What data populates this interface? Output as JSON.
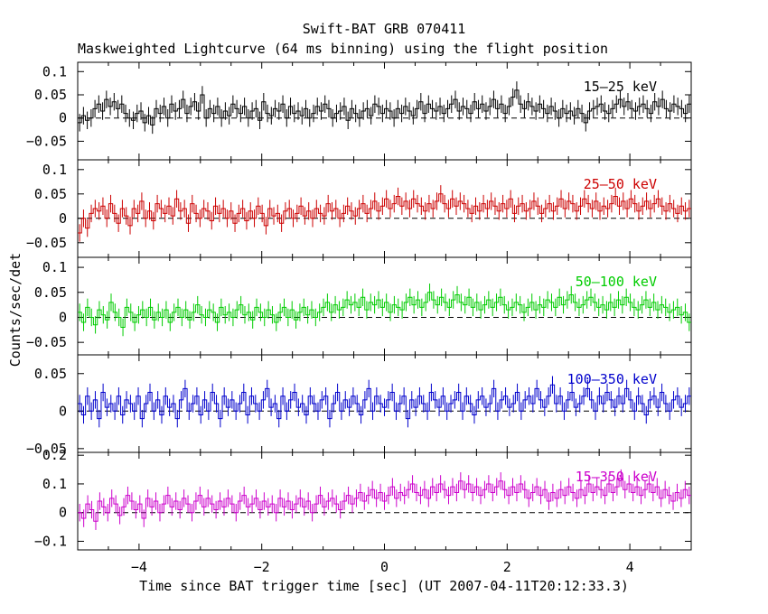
{
  "chart_data": {
    "type": "line",
    "title": "Swift-BAT GRB 070411",
    "subtitle": "Maskweighted Lightcurve (64 ms binning) using the flight position",
    "xlabel": "Time since BAT trigger time [sec] (UT 2007-04-11T20:12:33.3)",
    "ylabel": "Counts/sec/det",
    "xlim": [
      -5,
      5
    ],
    "x_ticks": [
      -4,
      -2,
      0,
      2,
      4
    ],
    "x_tick_labels": [
      "−4",
      "−2",
      "0",
      "2",
      "4"
    ],
    "bin_width": 0.064,
    "grid": false,
    "zero_line": "dashed",
    "panels": [
      {
        "band": "15–25 keV",
        "color": "#000000",
        "ylim": [
          -0.09,
          0.12
        ],
        "yticks": [
          -0.05,
          0,
          0.05,
          0.1
        ],
        "ytick_labels": [
          "−0.05",
          "0",
          "0.05",
          "0.1"
        ],
        "values": [
          -0.01,
          0.005,
          -0.005,
          0.0,
          0.02,
          0.03,
          0.015,
          0.04,
          0.025,
          0.035,
          0.02,
          0.03,
          0.01,
          0.0,
          -0.005,
          0.01,
          0.015,
          -0.01,
          0.005,
          -0.015,
          0.02,
          0.01,
          0.025,
          0.0,
          0.03,
          0.015,
          0.02,
          0.04,
          0.01,
          0.025,
          0.035,
          0.015,
          0.05,
          0.0,
          0.02,
          0.01,
          0.025,
          0.0,
          0.015,
          0.005,
          0.03,
          0.02,
          0.01,
          0.025,
          0.0,
          0.015,
          0.02,
          -0.005,
          0.035,
          0.01,
          0.005,
          0.02,
          0.015,
          0.03,
          0.0,
          0.025,
          0.01,
          0.015,
          0.005,
          0.02,
          0.0,
          0.01,
          0.025,
          0.015,
          0.03,
          0.02,
          0.0,
          0.01,
          0.015,
          0.025,
          -0.005,
          0.02,
          0.01,
          0.0,
          0.015,
          0.02,
          0.005,
          0.03,
          0.025,
          0.01,
          0.02,
          0.015,
          0.0,
          0.02,
          0.01,
          0.025,
          0.015,
          0.005,
          0.02,
          0.035,
          0.01,
          0.03,
          0.02,
          0.015,
          0.025,
          0.01,
          0.02,
          0.03,
          0.04,
          0.015,
          0.025,
          0.02,
          0.01,
          0.035,
          0.02,
          0.03,
          0.015,
          0.025,
          0.04,
          0.02,
          0.03,
          0.01,
          0.025,
          0.045,
          0.06,
          0.03,
          0.02,
          0.035,
          0.025,
          0.015,
          0.03,
          0.02,
          0.01,
          0.025,
          0.015,
          0.0,
          0.02,
          0.01,
          0.015,
          0.005,
          0.02,
          0.01,
          -0.01,
          0.015,
          0.02,
          0.025,
          0.03,
          0.015,
          0.01,
          0.02,
          0.03,
          0.04,
          0.025,
          0.035,
          0.02,
          0.015,
          0.025,
          0.03,
          0.02,
          0.01,
          0.035,
          0.025,
          0.04,
          0.02,
          0.015,
          0.03,
          0.025,
          0.02,
          0.01,
          0.03
        ]
      },
      {
        "band": "25–50 keV",
        "color": "#cc0000",
        "ylim": [
          -0.08,
          0.12
        ],
        "yticks": [
          -0.05,
          0,
          0.05,
          0.1
        ],
        "ytick_labels": [
          "−0.05",
          "0",
          "0.05",
          "0.1"
        ],
        "values": [
          -0.03,
          0.0,
          -0.02,
          0.01,
          0.02,
          0.015,
          0.025,
          0.0,
          0.03,
          0.01,
          -0.01,
          0.02,
          0.005,
          -0.015,
          0.02,
          0.01,
          0.035,
          0.0,
          0.015,
          -0.005,
          0.03,
          0.02,
          0.01,
          0.025,
          0.005,
          0.04,
          0.015,
          0.02,
          -0.01,
          0.03,
          0.01,
          0.0,
          0.02,
          0.015,
          -0.005,
          0.025,
          0.01,
          0.02,
          0.0,
          0.015,
          -0.01,
          0.01,
          0.02,
          -0.005,
          0.015,
          0.0,
          0.025,
          0.01,
          -0.015,
          0.02,
          0.005,
          0.01,
          -0.01,
          0.015,
          0.02,
          0.0,
          0.01,
          0.025,
          0.005,
          0.015,
          0.0,
          0.02,
          0.01,
          0.005,
          0.03,
          0.015,
          0.02,
          0.0,
          0.01,
          0.025,
          0.015,
          0.005,
          0.02,
          0.03,
          0.01,
          0.02,
          0.035,
          0.015,
          0.025,
          0.04,
          0.02,
          0.03,
          0.045,
          0.025,
          0.035,
          0.02,
          0.04,
          0.03,
          0.025,
          0.015,
          0.03,
          0.02,
          0.035,
          0.05,
          0.03,
          0.02,
          0.04,
          0.025,
          0.035,
          0.03,
          0.02,
          0.01,
          0.025,
          0.015,
          0.03,
          0.02,
          0.035,
          0.025,
          0.015,
          0.03,
          0.02,
          0.04,
          0.01,
          0.025,
          0.03,
          0.015,
          0.02,
          0.035,
          0.025,
          0.01,
          0.02,
          0.03,
          0.015,
          0.025,
          0.04,
          0.02,
          0.035,
          0.03,
          0.015,
          0.025,
          0.04,
          0.03,
          0.02,
          0.035,
          0.015,
          0.025,
          0.02,
          0.03,
          0.045,
          0.025,
          0.035,
          0.02,
          0.04,
          0.03,
          0.015,
          0.025,
          0.035,
          0.02,
          0.03,
          0.04,
          0.025,
          0.015,
          0.03,
          0.02,
          0.01,
          0.025,
          0.015,
          0.02
        ]
      },
      {
        "band": "50–100 keV",
        "color": "#00cc00",
        "ylim": [
          -0.075,
          0.12
        ],
        "yticks": [
          -0.05,
          0,
          0.05,
          0.1
        ],
        "ytick_labels": [
          "−0.05",
          "0",
          "0.05",
          "0.1"
        ],
        "values": [
          0.01,
          -0.01,
          0.02,
          0.0,
          -0.015,
          0.015,
          0.005,
          -0.005,
          0.03,
          0.01,
          0.0,
          -0.02,
          0.02,
          0.01,
          -0.01,
          0.005,
          0.015,
          0.0,
          0.02,
          -0.005,
          0.01,
          0.0,
          0.015,
          -0.01,
          0.01,
          0.02,
          0.0,
          0.015,
          -0.005,
          0.01,
          0.025,
          0.005,
          0.0,
          0.015,
          0.01,
          -0.01,
          0.02,
          0.005,
          0.01,
          0.0,
          0.015,
          0.025,
          0.005,
          0.01,
          -0.005,
          0.02,
          0.01,
          0.0,
          0.015,
          0.005,
          -0.01,
          0.01,
          0.02,
          0.0,
          0.015,
          -0.005,
          0.01,
          0.02,
          0.005,
          0.015,
          0.0,
          0.01,
          0.02,
          0.03,
          0.01,
          0.025,
          0.015,
          0.02,
          0.035,
          0.025,
          0.03,
          0.02,
          0.04,
          0.015,
          0.03,
          0.025,
          0.035,
          0.02,
          0.03,
          0.01,
          0.025,
          0.02,
          0.015,
          0.03,
          0.04,
          0.025,
          0.035,
          0.02,
          0.03,
          0.05,
          0.035,
          0.025,
          0.04,
          0.03,
          0.02,
          0.035,
          0.045,
          0.03,
          0.025,
          0.04,
          0.02,
          0.03,
          0.015,
          0.025,
          0.035,
          0.02,
          0.03,
          0.04,
          0.025,
          0.015,
          0.02,
          0.03,
          0.025,
          0.01,
          0.02,
          0.03,
          0.015,
          0.025,
          0.02,
          0.035,
          0.03,
          0.02,
          0.04,
          0.025,
          0.035,
          0.045,
          0.03,
          0.02,
          0.025,
          0.035,
          0.04,
          0.03,
          0.02,
          0.025,
          0.015,
          0.03,
          0.02,
          0.035,
          0.025,
          0.04,
          0.03,
          0.02,
          0.015,
          0.025,
          0.035,
          0.02,
          0.03,
          0.015,
          0.025,
          0.02,
          0.01,
          0.015,
          0.02,
          0.005,
          0.01,
          -0.01
        ]
      },
      {
        "band": "100–350 keV",
        "color": "#0000cc",
        "ylim": [
          -0.055,
          0.075
        ],
        "yticks": [
          -0.05,
          0,
          0.05
        ],
        "ytick_labels": [
          "−0.05",
          "0",
          "0.05"
        ],
        "values": [
          0.01,
          -0.005,
          0.02,
          0.0,
          0.015,
          -0.01,
          0.025,
          0.005,
          0.01,
          0.0,
          0.02,
          -0.005,
          0.015,
          0.01,
          0.0,
          0.02,
          -0.01,
          0.01,
          0.025,
          0.0,
          0.015,
          -0.005,
          0.02,
          0.005,
          0.01,
          -0.01,
          0.015,
          0.03,
          0.0,
          0.01,
          0.02,
          -0.005,
          0.015,
          0.0,
          0.025,
          0.01,
          -0.01,
          0.02,
          0.005,
          0.015,
          0.0,
          0.01,
          0.025,
          -0.005,
          0.02,
          0.01,
          0.0,
          0.015,
          0.03,
          0.005,
          0.01,
          -0.01,
          0.02,
          0.0,
          0.015,
          0.025,
          0.005,
          0.01,
          -0.005,
          0.02,
          0.01,
          0.0,
          0.015,
          0.02,
          -0.01,
          0.01,
          0.025,
          0.0,
          0.015,
          0.005,
          0.02,
          0.01,
          -0.005,
          0.015,
          0.03,
          0.0,
          0.02,
          0.01,
          0.005,
          0.015,
          0.025,
          0.0,
          0.01,
          0.02,
          -0.01,
          0.015,
          0.005,
          0.02,
          0.01,
          0.0,
          0.025,
          0.015,
          0.005,
          0.02,
          0.0,
          0.01,
          0.015,
          0.025,
          0.0,
          0.02,
          0.01,
          -0.005,
          0.015,
          0.02,
          0.005,
          0.01,
          0.03,
          0.0,
          0.015,
          0.02,
          0.005,
          0.01,
          0.025,
          0.0,
          0.015,
          0.02,
          0.01,
          0.03,
          0.015,
          0.005,
          0.02,
          0.035,
          0.01,
          0.02,
          0.0,
          0.015,
          0.025,
          0.005,
          0.01,
          0.02,
          0.03,
          0.015,
          0.0,
          0.02,
          0.01,
          0.025,
          0.015,
          0.005,
          0.02,
          0.01,
          0.03,
          0.015,
          0.0,
          0.02,
          0.01,
          -0.005,
          0.015,
          0.02,
          0.005,
          0.025,
          0.01,
          0.0,
          0.015,
          0.02,
          0.005,
          0.01,
          0.02
        ]
      },
      {
        "band": "15–350 keV",
        "color": "#cc00cc",
        "ylim": [
          -0.13,
          0.21
        ],
        "yticks": [
          -0.1,
          0,
          0.1,
          0.2
        ],
        "ytick_labels": [
          "−0.1",
          "0",
          "0.1",
          "0.2"
        ],
        "values": [
          0.0,
          -0.02,
          0.03,
          0.01,
          -0.03,
          0.04,
          0.02,
          0.0,
          0.05,
          0.03,
          -0.01,
          0.02,
          0.06,
          0.04,
          0.01,
          0.03,
          -0.02,
          0.05,
          0.02,
          0.04,
          0.0,
          0.03,
          0.06,
          0.02,
          0.04,
          0.01,
          0.05,
          0.03,
          0.0,
          0.04,
          0.06,
          0.02,
          0.05,
          0.03,
          0.01,
          0.04,
          0.02,
          0.05,
          0.03,
          0.0,
          0.04,
          0.06,
          0.02,
          0.03,
          0.05,
          0.01,
          0.04,
          0.02,
          0.03,
          0.0,
          0.05,
          0.02,
          0.04,
          0.01,
          0.03,
          0.05,
          0.02,
          0.04,
          0.0,
          0.03,
          0.06,
          0.02,
          0.04,
          0.05,
          0.03,
          0.01,
          0.04,
          0.06,
          0.03,
          0.05,
          0.07,
          0.04,
          0.06,
          0.08,
          0.05,
          0.07,
          0.04,
          0.06,
          0.09,
          0.05,
          0.07,
          0.06,
          0.08,
          0.1,
          0.07,
          0.06,
          0.08,
          0.05,
          0.09,
          0.07,
          0.1,
          0.08,
          0.06,
          0.09,
          0.07,
          0.11,
          0.08,
          0.1,
          0.07,
          0.09,
          0.06,
          0.08,
          0.1,
          0.07,
          0.09,
          0.11,
          0.08,
          0.06,
          0.09,
          0.07,
          0.1,
          0.08,
          0.05,
          0.07,
          0.09,
          0.06,
          0.08,
          0.04,
          0.07,
          0.05,
          0.08,
          0.06,
          0.09,
          0.07,
          0.05,
          0.08,
          0.06,
          0.1,
          0.07,
          0.09,
          0.08,
          0.06,
          0.1,
          0.07,
          0.09,
          0.12,
          0.08,
          0.1,
          0.07,
          0.09,
          0.06,
          0.08,
          0.1,
          0.07,
          0.09,
          0.05,
          0.08,
          0.06,
          0.04,
          0.07,
          0.05,
          0.08,
          0.06
        ]
      }
    ]
  }
}
